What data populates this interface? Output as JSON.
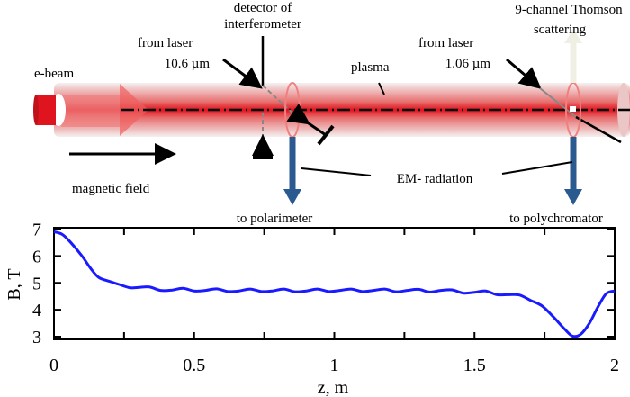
{
  "diagram": {
    "labels": {
      "detector": [
        "detector of",
        "interferometer"
      ],
      "laser1": [
        "from laser",
        "10.6 µm"
      ],
      "ebeam": "e-beam",
      "plasma": "plasma",
      "laser2": [
        "from laser",
        "1.06 µm"
      ],
      "thomson": [
        "9-channel Thomson",
        "scattering"
      ],
      "magnetic_field": "magnetic field",
      "em_radiation": "EM- radiation",
      "to_polarimeter": "to polarimeter",
      "to_polychromator": "to polychromator"
    },
    "colors": {
      "plasma": "#e0141e",
      "arrow_blue": "#2a5a8f",
      "thomson_arrow": "#f0efe4"
    }
  },
  "chart_data": {
    "type": "line",
    "xlabel": "z, m",
    "ylabel": "B, T",
    "xlim": [
      0,
      2
    ],
    "ylim": [
      2.9,
      7.05
    ],
    "xticks": [
      "0",
      "0.5",
      "1",
      "1.5",
      "2"
    ],
    "yticks": [
      "3",
      "4",
      "5",
      "6",
      "7"
    ],
    "grid": false,
    "series": [
      {
        "color": "#1a1aff",
        "x": [
          0,
          0.03,
          0.06,
          0.1,
          0.13,
          0.16,
          0.2,
          0.23,
          0.27,
          0.3,
          0.34,
          0.38,
          0.42,
          0.46,
          0.5,
          0.54,
          0.58,
          0.62,
          0.66,
          0.7,
          0.74,
          0.78,
          0.82,
          0.86,
          0.9,
          0.94,
          0.98,
          1.02,
          1.06,
          1.1,
          1.14,
          1.18,
          1.22,
          1.26,
          1.3,
          1.34,
          1.38,
          1.42,
          1.46,
          1.5,
          1.54,
          1.58,
          1.62,
          1.66,
          1.7,
          1.74,
          1.78,
          1.82,
          1.85,
          1.88,
          1.91,
          1.94,
          1.97,
          2.0
        ],
        "y": [
          6.9,
          6.8,
          6.5,
          6.0,
          5.55,
          5.2,
          5.05,
          4.95,
          4.82,
          4.83,
          4.85,
          4.72,
          4.73,
          4.8,
          4.7,
          4.72,
          4.78,
          4.68,
          4.7,
          4.77,
          4.68,
          4.7,
          4.77,
          4.67,
          4.7,
          4.77,
          4.68,
          4.72,
          4.77,
          4.68,
          4.72,
          4.77,
          4.67,
          4.72,
          4.76,
          4.66,
          4.72,
          4.74,
          4.62,
          4.65,
          4.7,
          4.56,
          4.56,
          4.55,
          4.35,
          4.15,
          3.75,
          3.3,
          3.02,
          3.1,
          3.5,
          4.1,
          4.6,
          4.7
        ]
      }
    ]
  }
}
